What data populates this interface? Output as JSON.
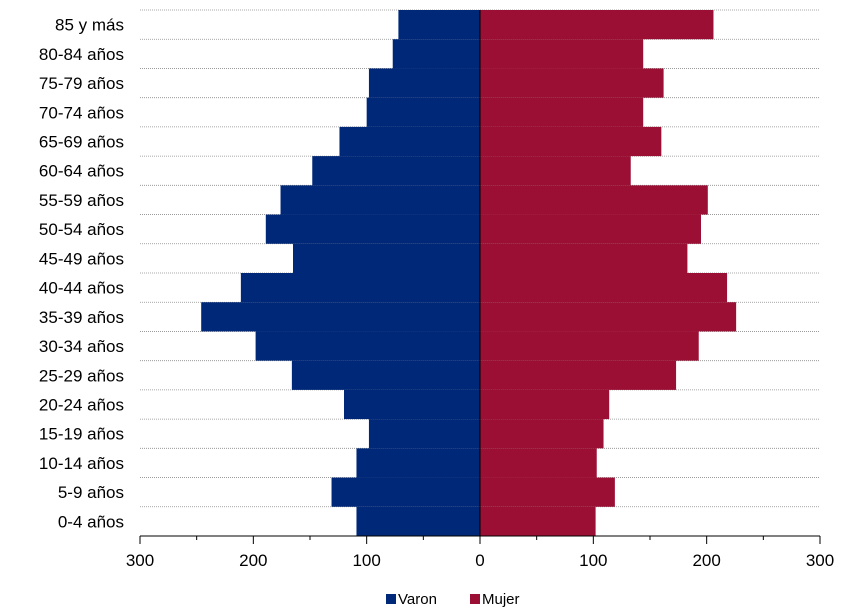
{
  "chart_data": {
    "type": "bar",
    "orientation": "horizontal",
    "layout": "population-pyramid",
    "categories": [
      "0-4 años",
      "5-9 años",
      "10-14 años",
      "15-19 años",
      "20-24 años",
      "25-29 años",
      "30-34 años",
      "35-39 años",
      "40-44 años",
      "45-49 años",
      "50-54 años",
      "55-59 años",
      "60-64 años",
      "65-69 años",
      "70-74 años",
      "75-79 años",
      "80-84 años",
      "85 y más"
    ],
    "series": [
      {
        "name": "Varon",
        "color": "#002878",
        "side": "left",
        "values": [
          109,
          131,
          109,
          98,
          120,
          166,
          198,
          246,
          211,
          165,
          189,
          176,
          148,
          124,
          100,
          98,
          77,
          72
        ]
      },
      {
        "name": "Mujer",
        "color": "#9b0f34",
        "side": "right",
        "values": [
          102,
          119,
          103,
          109,
          114,
          173,
          193,
          226,
          218,
          183,
          195,
          201,
          133,
          160,
          144,
          162,
          144,
          206
        ]
      }
    ],
    "xticks": [
      "300",
      "200",
      "100",
      "0",
      "100",
      "200",
      "300"
    ],
    "xlim": [
      -300,
      300
    ],
    "grid": "horizontal-dotted",
    "legend_position": "bottom-center"
  }
}
